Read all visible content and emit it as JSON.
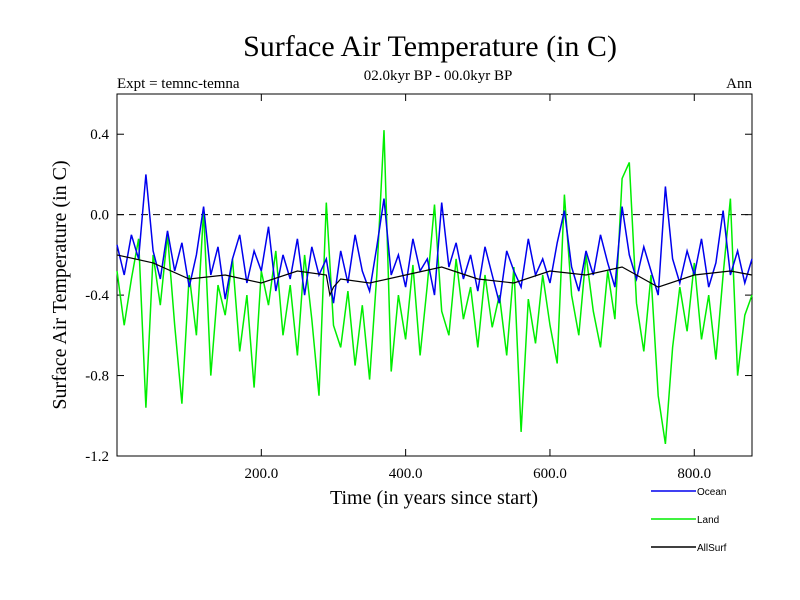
{
  "chart_data": {
    "type": "line",
    "title": "Surface Air Temperature (in C)",
    "subtitle": "02.0kyr BP - 00.0kyr BP",
    "left_label": "Expt = temnc-temna",
    "right_label": "Ann",
    "xlabel": "Time (in years since start)",
    "ylabel": "Surface Air Temperature (in C)",
    "xlim": [
      0,
      880
    ],
    "ylim": [
      -1.2,
      0.6
    ],
    "xticks": [
      200,
      400,
      600,
      800
    ],
    "xtick_labels": [
      "200.0",
      "400.0",
      "600.0",
      "800.0"
    ],
    "yticks": [
      -1.2,
      -0.8,
      -0.4,
      0.0,
      0.4
    ],
    "ytick_labels": [
      "-1.2",
      "-0.8",
      "-0.4",
      "0.0",
      "0.4"
    ],
    "reference_line": {
      "y": 0.0,
      "style": "dashed"
    },
    "legend_position": "bottom-right",
    "series": [
      {
        "name": "Land",
        "color": "#00ee00",
        "points": [
          [
            0,
            -0.28
          ],
          [
            10,
            -0.55
          ],
          [
            20,
            -0.32
          ],
          [
            30,
            -0.12
          ],
          [
            40,
            -0.96
          ],
          [
            50,
            -0.2
          ],
          [
            60,
            -0.45
          ],
          [
            70,
            -0.1
          ],
          [
            80,
            -0.55
          ],
          [
            90,
            -0.94
          ],
          [
            100,
            -0.3
          ],
          [
            110,
            -0.6
          ],
          [
            120,
            0.02
          ],
          [
            130,
            -0.8
          ],
          [
            140,
            -0.35
          ],
          [
            150,
            -0.5
          ],
          [
            160,
            -0.22
          ],
          [
            170,
            -0.68
          ],
          [
            180,
            -0.4
          ],
          [
            190,
            -0.86
          ],
          [
            200,
            -0.28
          ],
          [
            210,
            -0.45
          ],
          [
            220,
            -0.18
          ],
          [
            230,
            -0.6
          ],
          [
            240,
            -0.35
          ],
          [
            250,
            -0.7
          ],
          [
            260,
            -0.2
          ],
          [
            270,
            -0.52
          ],
          [
            280,
            -0.9
          ],
          [
            290,
            0.06
          ],
          [
            300,
            -0.55
          ],
          [
            310,
            -0.66
          ],
          [
            320,
            -0.38
          ],
          [
            330,
            -0.75
          ],
          [
            340,
            -0.45
          ],
          [
            350,
            -0.82
          ],
          [
            360,
            -0.3
          ],
          [
            370,
            0.42
          ],
          [
            380,
            -0.78
          ],
          [
            390,
            -0.4
          ],
          [
            400,
            -0.62
          ],
          [
            410,
            -0.25
          ],
          [
            420,
            -0.7
          ],
          [
            430,
            -0.35
          ],
          [
            440,
            0.05
          ],
          [
            450,
            -0.48
          ],
          [
            460,
            -0.6
          ],
          [
            470,
            -0.22
          ],
          [
            480,
            -0.52
          ],
          [
            490,
            -0.36
          ],
          [
            500,
            -0.66
          ],
          [
            510,
            -0.3
          ],
          [
            520,
            -0.56
          ],
          [
            530,
            -0.4
          ],
          [
            540,
            -0.7
          ],
          [
            550,
            -0.26
          ],
          [
            560,
            -1.08
          ],
          [
            570,
            -0.42
          ],
          [
            580,
            -0.64
          ],
          [
            590,
            -0.3
          ],
          [
            600,
            -0.55
          ],
          [
            610,
            -0.74
          ],
          [
            620,
            0.1
          ],
          [
            630,
            -0.4
          ],
          [
            640,
            -0.6
          ],
          [
            650,
            -0.2
          ],
          [
            660,
            -0.48
          ],
          [
            670,
            -0.66
          ],
          [
            680,
            -0.28
          ],
          [
            690,
            -0.52
          ],
          [
            700,
            0.18
          ],
          [
            710,
            0.26
          ],
          [
            720,
            -0.44
          ],
          [
            730,
            -0.68
          ],
          [
            740,
            -0.3
          ],
          [
            750,
            -0.9
          ],
          [
            760,
            -1.14
          ],
          [
            770,
            -0.66
          ],
          [
            780,
            -0.36
          ],
          [
            790,
            -0.58
          ],
          [
            800,
            -0.24
          ],
          [
            810,
            -0.62
          ],
          [
            820,
            -0.4
          ],
          [
            830,
            -0.72
          ],
          [
            840,
            -0.3
          ],
          [
            850,
            0.08
          ],
          [
            860,
            -0.8
          ],
          [
            870,
            -0.5
          ],
          [
            880,
            -0.4
          ]
        ]
      },
      {
        "name": "Ocean",
        "color": "#0000ee",
        "points": [
          [
            0,
            -0.15
          ],
          [
            10,
            -0.3
          ],
          [
            20,
            -0.1
          ],
          [
            30,
            -0.22
          ],
          [
            40,
            0.2
          ],
          [
            50,
            -0.18
          ],
          [
            60,
            -0.32
          ],
          [
            70,
            -0.08
          ],
          [
            80,
            -0.28
          ],
          [
            90,
            -0.14
          ],
          [
            100,
            -0.36
          ],
          [
            110,
            -0.2
          ],
          [
            120,
            0.04
          ],
          [
            130,
            -0.3
          ],
          [
            140,
            -0.16
          ],
          [
            150,
            -0.42
          ],
          [
            160,
            -0.22
          ],
          [
            170,
            -0.1
          ],
          [
            180,
            -0.34
          ],
          [
            190,
            -0.18
          ],
          [
            200,
            -0.28
          ],
          [
            210,
            -0.06
          ],
          [
            220,
            -0.38
          ],
          [
            230,
            -0.2
          ],
          [
            240,
            -0.32
          ],
          [
            250,
            -0.12
          ],
          [
            260,
            -0.4
          ],
          [
            270,
            -0.16
          ],
          [
            280,
            -0.3
          ],
          [
            290,
            -0.22
          ],
          [
            300,
            -0.44
          ],
          [
            310,
            -0.18
          ],
          [
            320,
            -0.34
          ],
          [
            330,
            -0.1
          ],
          [
            340,
            -0.28
          ],
          [
            350,
            -0.38
          ],
          [
            360,
            -0.16
          ],
          [
            370,
            0.08
          ],
          [
            380,
            -0.3
          ],
          [
            390,
            -0.2
          ],
          [
            400,
            -0.36
          ],
          [
            410,
            -0.12
          ],
          [
            420,
            -0.28
          ],
          [
            430,
            -0.22
          ],
          [
            440,
            -0.4
          ],
          [
            450,
            0.06
          ],
          [
            460,
            -0.26
          ],
          [
            470,
            -0.14
          ],
          [
            480,
            -0.32
          ],
          [
            490,
            -0.2
          ],
          [
            500,
            -0.38
          ],
          [
            510,
            -0.16
          ],
          [
            520,
            -0.3
          ],
          [
            530,
            -0.44
          ],
          [
            540,
            -0.18
          ],
          [
            550,
            -0.28
          ],
          [
            560,
            -0.36
          ],
          [
            570,
            -0.12
          ],
          [
            580,
            -0.3
          ],
          [
            590,
            -0.22
          ],
          [
            600,
            -0.34
          ],
          [
            610,
            -0.14
          ],
          [
            620,
            0.02
          ],
          [
            630,
            -0.26
          ],
          [
            640,
            -0.38
          ],
          [
            650,
            -0.18
          ],
          [
            660,
            -0.3
          ],
          [
            670,
            -0.1
          ],
          [
            680,
            -0.24
          ],
          [
            690,
            -0.36
          ],
          [
            700,
            0.04
          ],
          [
            710,
            -0.2
          ],
          [
            720,
            -0.32
          ],
          [
            730,
            -0.16
          ],
          [
            740,
            -0.28
          ],
          [
            750,
            -0.4
          ],
          [
            760,
            0.14
          ],
          [
            770,
            -0.22
          ],
          [
            780,
            -0.34
          ],
          [
            790,
            -0.18
          ],
          [
            800,
            -0.3
          ],
          [
            810,
            -0.12
          ],
          [
            820,
            -0.36
          ],
          [
            830,
            -0.24
          ],
          [
            840,
            0.02
          ],
          [
            850,
            -0.3
          ],
          [
            860,
            -0.18
          ],
          [
            870,
            -0.34
          ],
          [
            880,
            -0.22
          ]
        ]
      },
      {
        "name": "AllSurf",
        "color": "#000000",
        "points": [
          [
            0,
            -0.2
          ],
          [
            50,
            -0.24
          ],
          [
            100,
            -0.32
          ],
          [
            150,
            -0.3
          ],
          [
            200,
            -0.34
          ],
          [
            250,
            -0.28
          ],
          [
            290,
            -0.3
          ],
          [
            295,
            -0.4
          ],
          [
            300,
            -0.36
          ],
          [
            310,
            -0.32
          ],
          [
            350,
            -0.34
          ],
          [
            400,
            -0.3
          ],
          [
            450,
            -0.26
          ],
          [
            500,
            -0.32
          ],
          [
            550,
            -0.34
          ],
          [
            600,
            -0.28
          ],
          [
            650,
            -0.3
          ],
          [
            700,
            -0.26
          ],
          [
            750,
            -0.36
          ],
          [
            800,
            -0.3
          ],
          [
            850,
            -0.28
          ],
          [
            880,
            -0.3
          ]
        ]
      }
    ]
  }
}
